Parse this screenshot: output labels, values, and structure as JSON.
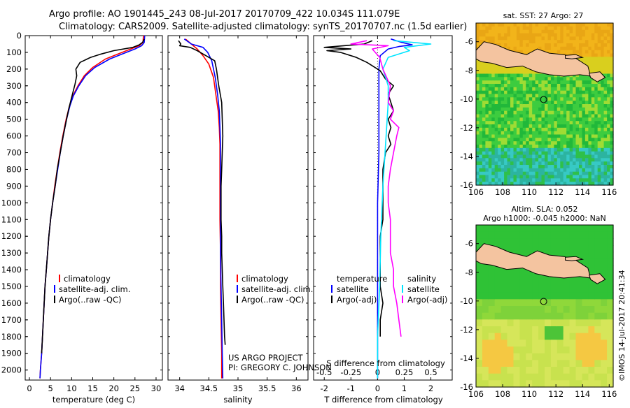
{
  "header": {
    "title_line1": "Argo profile: AO 1901445_243 08-Jul-2017 20170709_422 10.034S 111.079E",
    "title_line2": "Climatology: CARS2009. Satellite-adjusted climatology: synTS_20170707.nc (1.5d earlier)"
  },
  "colors": {
    "climatology": "#ff0000",
    "satellite": "#0000ff",
    "argo": "#000000",
    "salinity_satellite": "#00e5ff",
    "salinity_argo": "#ff00ff"
  },
  "depth_axis": {
    "ticks": [
      0,
      100,
      200,
      300,
      400,
      500,
      600,
      700,
      800,
      900,
      1000,
      1100,
      1200,
      1300,
      1400,
      1500,
      1600,
      1700,
      1800,
      1900,
      2000
    ],
    "ylim": [
      0,
      2060
    ]
  },
  "chart_data": [
    {
      "type": "line",
      "xlabel": "temperature (deg C)",
      "xlim": [
        -1,
        31.5
      ],
      "xticks": [
        "0",
        "5",
        "10",
        "15",
        "20",
        "25",
        "30"
      ],
      "xtick_values": [
        0,
        5,
        10,
        15,
        20,
        25,
        30
      ],
      "legend": [
        "climatology",
        "satellite-adj. clim.",
        "Argo(..raw -QC)"
      ],
      "series": [
        {
          "name": "climatology",
          "color": "#ff0000",
          "points": [
            [
              27,
              0
            ],
            [
              26.9,
              40
            ],
            [
              26,
              60
            ],
            [
              24,
              80
            ],
            [
              21,
              110
            ],
            [
              18,
              140
            ],
            [
              15,
              190
            ],
            [
              13,
              240
            ],
            [
              11.5,
              300
            ],
            [
              10.3,
              360
            ],
            [
              9.5,
              420
            ],
            [
              8.7,
              500
            ],
            [
              7.9,
              600
            ],
            [
              7.2,
              700
            ],
            [
              6.6,
              800
            ],
            [
              6,
              900
            ],
            [
              5.5,
              1000
            ],
            [
              5,
              1100
            ],
            [
              4.6,
              1200
            ],
            [
              4.3,
              1300
            ],
            [
              4,
              1400
            ],
            [
              3.7,
              1500
            ],
            [
              3.5,
              1600
            ],
            [
              3.3,
              1700
            ],
            [
              3.1,
              1800
            ],
            [
              2.9,
              1900
            ],
            [
              2.6,
              2000
            ],
            [
              2.5,
              2050
            ]
          ]
        },
        {
          "name": "satellite-adj. clim.",
          "color": "#0000ff",
          "points": [
            [
              27.3,
              0
            ],
            [
              27.2,
              40
            ],
            [
              26.6,
              60
            ],
            [
              25,
              80
            ],
            [
              22,
              110
            ],
            [
              19,
              140
            ],
            [
              15.5,
              190
            ],
            [
              13.3,
              240
            ],
            [
              11.7,
              300
            ],
            [
              10.4,
              360
            ],
            [
              9.6,
              420
            ],
            [
              8.8,
              500
            ],
            [
              8,
              600
            ],
            [
              7.3,
              700
            ],
            [
              6.7,
              800
            ],
            [
              6.1,
              900
            ],
            [
              5.5,
              1000
            ],
            [
              5,
              1100
            ],
            [
              4.6,
              1200
            ],
            [
              4.3,
              1300
            ],
            [
              4,
              1400
            ],
            [
              3.7,
              1500
            ],
            [
              3.5,
              1600
            ],
            [
              3.3,
              1700
            ],
            [
              3.1,
              1800
            ],
            [
              2.9,
              1900
            ],
            [
              2.6,
              2000
            ],
            [
              2.5,
              2050
            ]
          ]
        },
        {
          "name": "Argo(..raw -QC)",
          "color": "#000000",
          "points": [
            [
              27.2,
              20
            ],
            [
              26.8,
              40
            ],
            [
              26,
              55
            ],
            [
              24.5,
              70
            ],
            [
              20,
              90
            ],
            [
              17,
              110
            ],
            [
              14.5,
              130
            ],
            [
              12,
              160
            ],
            [
              11,
              200
            ],
            [
              11.2,
              240
            ],
            [
              10.8,
              290
            ],
            [
              10.3,
              340
            ],
            [
              9.8,
              390
            ],
            [
              9.3,
              440
            ],
            [
              8.8,
              500
            ],
            [
              8,
              600
            ],
            [
              7.3,
              700
            ],
            [
              6.6,
              800
            ],
            [
              6.1,
              900
            ],
            [
              5.5,
              1000
            ],
            [
              5,
              1100
            ],
            [
              4.6,
              1200
            ],
            [
              4.3,
              1300
            ],
            [
              4,
              1400
            ],
            [
              3.7,
              1500
            ],
            [
              3.5,
              1600
            ],
            [
              3.3,
              1700
            ],
            [
              3.1,
              1800
            ],
            [
              2.9,
              1900
            ]
          ]
        }
      ]
    },
    {
      "type": "line",
      "xlabel": "salinity",
      "xlim": [
        33.8,
        36.2
      ],
      "xticks": [
        "34",
        "34.5",
        "35",
        "35.5",
        "36"
      ],
      "xtick_values": [
        34,
        34.5,
        35,
        35.5,
        36
      ],
      "legend": [
        "climatology",
        "satellite-adj. clim.",
        "Argo(..raw -QC)"
      ],
      "series": [
        {
          "name": "climatology",
          "color": "#ff0000",
          "points": [
            [
              34.1,
              20
            ],
            [
              34.2,
              50
            ],
            [
              34.3,
              80
            ],
            [
              34.4,
              120
            ],
            [
              34.5,
              170
            ],
            [
              34.58,
              250
            ],
            [
              34.62,
              350
            ],
            [
              34.66,
              450
            ],
            [
              34.68,
              550
            ],
            [
              34.69,
              650
            ],
            [
              34.69,
              750
            ],
            [
              34.69,
              900
            ],
            [
              34.69,
              1100
            ],
            [
              34.7,
              1300
            ],
            [
              34.7,
              1500
            ],
            [
              34.71,
              1700
            ],
            [
              34.72,
              1900
            ],
            [
              34.72,
              2050
            ]
          ]
        },
        {
          "name": "satellite-adj. clim.",
          "color": "#0000ff",
          "points": [
            [
              34.08,
              20
            ],
            [
              34.2,
              50
            ],
            [
              34.4,
              70
            ],
            [
              34.48,
              100
            ],
            [
              34.55,
              150
            ],
            [
              34.61,
              250
            ],
            [
              34.65,
              350
            ],
            [
              34.68,
              450
            ],
            [
              34.69,
              550
            ],
            [
              34.7,
              650
            ],
            [
              34.7,
              750
            ],
            [
              34.7,
              900
            ],
            [
              34.7,
              1100
            ],
            [
              34.7,
              1300
            ],
            [
              34.71,
              1500
            ],
            [
              34.72,
              1700
            ],
            [
              34.73,
              1900
            ],
            [
              34.74,
              2050
            ]
          ]
        },
        {
          "name": "Argo(..raw -QC)",
          "color": "#000000",
          "points": [
            [
              33.98,
              30
            ],
            [
              34.02,
              50
            ],
            [
              34.0,
              60
            ],
            [
              34.18,
              70
            ],
            [
              34.3,
              90
            ],
            [
              34.45,
              120
            ],
            [
              34.6,
              150
            ],
            [
              34.63,
              200
            ],
            [
              34.67,
              300
            ],
            [
              34.72,
              400
            ],
            [
              34.73,
              500
            ],
            [
              34.74,
              600
            ],
            [
              34.73,
              700
            ],
            [
              34.72,
              800
            ],
            [
              34.71,
              900
            ],
            [
              34.71,
              1000
            ],
            [
              34.71,
              1100
            ],
            [
              34.72,
              1200
            ],
            [
              34.72,
              1300
            ],
            [
              34.73,
              1400
            ],
            [
              34.74,
              1500
            ],
            [
              34.75,
              1600
            ],
            [
              34.76,
              1700
            ],
            [
              34.77,
              1800
            ],
            [
              34.78,
              1850
            ]
          ]
        }
      ]
    },
    {
      "type": "line",
      "xlabel": "T difference from climatology",
      "xlabel_top": "S difference from climatology",
      "xlim": [
        -2.4,
        2.8
      ],
      "xticks": [
        "-2",
        "-1",
        "0",
        "1",
        "2"
      ],
      "xtick_values": [
        -2,
        -1,
        0,
        1,
        2
      ],
      "xticks_salinity": [
        "-0.5",
        "-0.25",
        "0",
        "0.25",
        "0.5"
      ],
      "legend_groups": [
        {
          "heading": "temperature",
          "items": [
            "satellite",
            "Argo(-adj)"
          ]
        },
        {
          "heading": "salinity",
          "items": [
            "satellite",
            "Argo(-adj)"
          ]
        }
      ],
      "series": [
        {
          "name": "satellite",
          "group": "temperature",
          "color": "#0000ff",
          "points": [
            [
              0.5,
              20
            ],
            [
              0.9,
              40
            ],
            [
              1.3,
              55
            ],
            [
              0.8,
              65
            ],
            [
              0.4,
              80
            ],
            [
              0.1,
              120
            ],
            [
              0.05,
              200
            ],
            [
              0.05,
              400
            ],
            [
              0.05,
              700
            ],
            [
              0.0,
              1000
            ],
            [
              0.0,
              1300
            ],
            [
              0.0,
              1600
            ],
            [
              0.0,
              1900
            ],
            [
              0.0,
              2050
            ]
          ]
        },
        {
          "name": "Argo(-adj)",
          "group": "temperature",
          "color": "#000000",
          "points": [
            [
              -0.2,
              30
            ],
            [
              -0.5,
              50
            ],
            [
              -2.0,
              70
            ],
            [
              -1.0,
              80
            ],
            [
              -1.9,
              90
            ],
            [
              -1.4,
              100
            ],
            [
              -0.8,
              130
            ],
            [
              -0.4,
              160
            ],
            [
              0.1,
              210
            ],
            [
              0.3,
              260
            ],
            [
              0.6,
              300
            ],
            [
              0.4,
              350
            ],
            [
              0.5,
              400
            ],
            [
              0.6,
              450
            ],
            [
              0.4,
              500
            ],
            [
              0.5,
              550
            ],
            [
              0.4,
              600
            ],
            [
              0.5,
              650
            ],
            [
              0.3,
              700
            ],
            [
              0.2,
              800
            ],
            [
              0.2,
              900
            ],
            [
              0.2,
              1000
            ],
            [
              0.2,
              1100
            ],
            [
              0.1,
              1200
            ],
            [
              0.1,
              1300
            ],
            [
              0.1,
              1400
            ],
            [
              0.1,
              1500
            ],
            [
              0.2,
              1600
            ],
            [
              0.1,
              1700
            ],
            [
              0.1,
              1800
            ]
          ]
        },
        {
          "name": "satellite",
          "group": "salinity",
          "color": "#00e5ff",
          "points": [
            [
              0.15,
              30
            ],
            [
              0.5,
              50
            ],
            [
              0.25,
              70
            ],
            [
              0.3,
              90
            ],
            [
              0.1,
              130
            ],
            [
              0.05,
              200
            ],
            [
              0.1,
              300
            ],
            [
              0.1,
              400
            ],
            [
              0.08,
              600
            ],
            [
              0.05,
              900
            ],
            [
              0.03,
              1200
            ],
            [
              0.02,
              1500
            ],
            [
              0.0,
              1800
            ],
            [
              0.0,
              2050
            ]
          ]
        },
        {
          "name": "Argo(-adj)",
          "group": "salinity",
          "color": "#ff00ff",
          "points": [
            [
              -0.1,
              30
            ],
            [
              -0.25,
              50
            ],
            [
              0.1,
              60
            ],
            [
              -0.05,
              80
            ],
            [
              0.02,
              130
            ],
            [
              0.05,
              200
            ],
            [
              0.12,
              300
            ],
            [
              0.1,
              400
            ],
            [
              0.15,
              450
            ],
            [
              0.12,
              500
            ],
            [
              0.2,
              550
            ],
            [
              0.18,
              600
            ],
            [
              0.15,
              700
            ],
            [
              0.12,
              800
            ],
            [
              0.1,
              900
            ],
            [
              0.1,
              1000
            ],
            [
              0.12,
              1100
            ],
            [
              0.12,
              1200
            ],
            [
              0.12,
              1300
            ],
            [
              0.15,
              1400
            ],
            [
              0.15,
              1500
            ],
            [
              0.18,
              1600
            ],
            [
              0.2,
              1700
            ],
            [
              0.22,
              1800
            ]
          ]
        }
      ]
    }
  ],
  "credits": {
    "line1": "US ARGO PROJECT",
    "line2": "PI: GREGORY C. JOHNSON"
  },
  "maps": {
    "top_title": "sat. SST: 27 Argo: 27",
    "bottom_title_line1": "Altim. SLA: 0.052",
    "bottom_title_line2": "Argo h1000: -0.045 h2000: NaN",
    "xticks": [
      "106",
      "108",
      "110",
      "112",
      "114",
      "116"
    ],
    "yticks": [
      "-6",
      "-8",
      "-10",
      "-12",
      "-14",
      "-16"
    ],
    "watermark": "©IMOS 14-Jul-2017 20:41:34",
    "float_position": {
      "lon": 111.079,
      "lat": -10.034
    }
  }
}
